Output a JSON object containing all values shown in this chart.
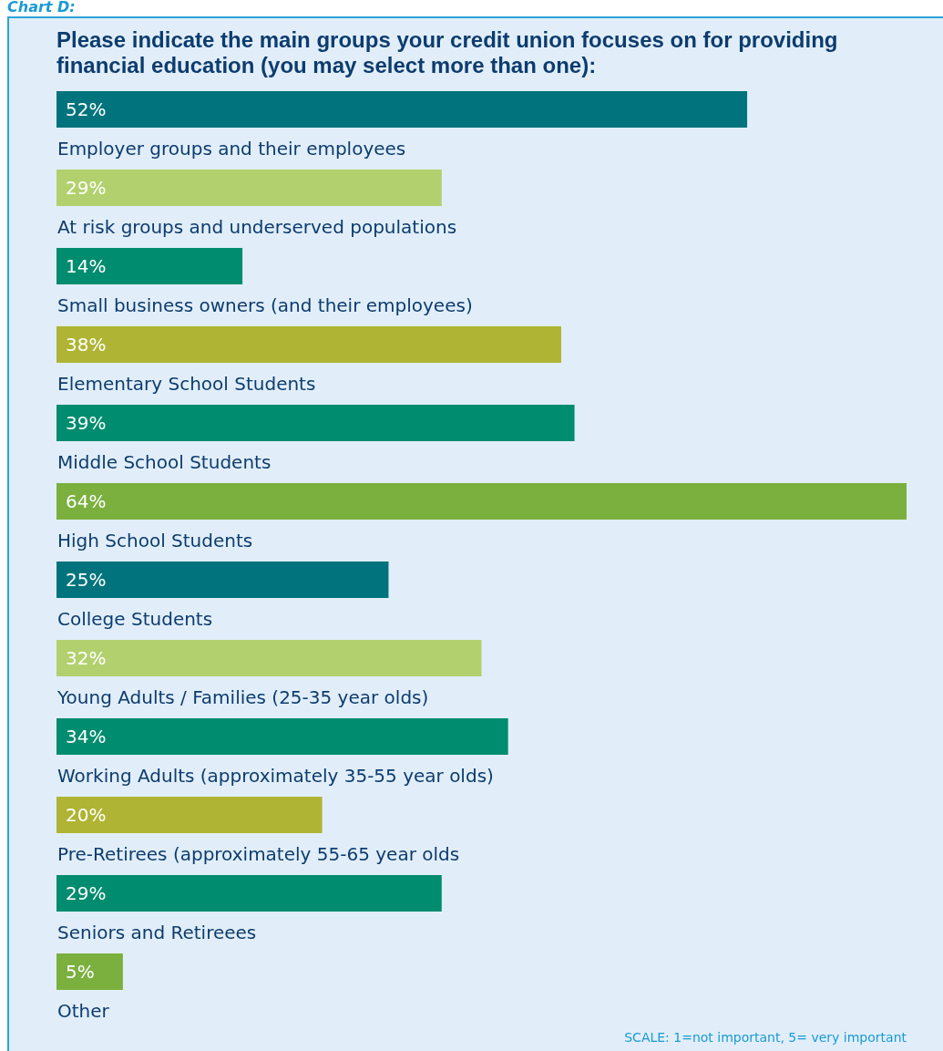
{
  "chart_data": {
    "type": "bar",
    "orientation": "horizontal",
    "title": "Please indicate the main groups your credit union focuses on for providing financial education (you may select more than one):",
    "categories": [
      "Employer groups and their employees",
      "At risk groups and underserved populations",
      "Small business owners (and their employees)",
      "Elementary School Students",
      "Middle School Students",
      "High School Students",
      "College Students",
      "Young Adults / Families (25-35 year olds)",
      "Working Adults (approximately 35-55 year olds)",
      "Pre-Retirees (approximately 55-65 year olds",
      "Seniors and Retireees",
      "Other"
    ],
    "values": [
      52,
      29,
      14,
      38,
      39,
      64,
      25,
      32,
      34,
      20,
      29,
      5
    ],
    "value_labels": [
      "52%",
      "29%",
      "14%",
      "38%",
      "39%",
      "64%",
      "25%",
      "32%",
      "34%",
      "20%",
      "29%",
      "5%"
    ],
    "colors": [
      "#00737c",
      "#b2d16e",
      "#008c6e",
      "#afb434",
      "#008c6e",
      "#7bb03e",
      "#00737c",
      "#b2d16e",
      "#008c6e",
      "#afb434",
      "#008c6e",
      "#7bb03e"
    ],
    "annotations": [
      "Chart D:",
      "SCALE: 1=not important, 5= very important"
    ]
  }
}
